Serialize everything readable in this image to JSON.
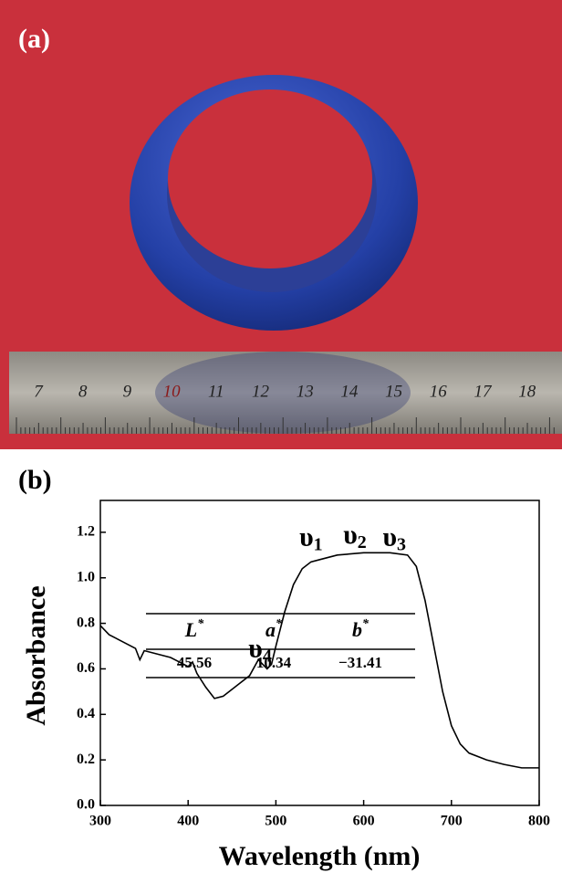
{
  "panel_a": {
    "label": "(a)",
    "ruler_labels": [
      "7",
      "8",
      "9",
      "10",
      "11",
      "12",
      "13",
      "14",
      "15",
      "16",
      "17",
      "18"
    ]
  },
  "chart_data": {
    "type": "line",
    "panel_label": "(b)",
    "x_label": "Wavelength (nm)",
    "y_label": "Absorbance",
    "x": [
      300,
      310,
      320,
      330,
      340,
      345,
      350,
      360,
      370,
      380,
      390,
      400,
      405,
      410,
      420,
      430,
      440,
      450,
      460,
      470,
      480,
      485,
      490,
      495,
      500,
      510,
      520,
      530,
      540,
      550,
      560,
      570,
      600,
      630,
      650,
      660,
      670,
      680,
      690,
      700,
      710,
      720,
      740,
      760,
      780,
      800
    ],
    "series": [
      {
        "color": "#000000",
        "values": [
          0.79,
          0.75,
          0.73,
          0.71,
          0.69,
          0.64,
          0.68,
          0.67,
          0.66,
          0.65,
          0.63,
          0.61,
          0.63,
          0.58,
          0.52,
          0.47,
          0.48,
          0.51,
          0.54,
          0.57,
          0.64,
          0.62,
          0.6,
          0.62,
          0.7,
          0.85,
          0.97,
          1.04,
          1.07,
          1.08,
          1.09,
          1.1,
          1.11,
          1.11,
          1.1,
          1.05,
          0.9,
          0.7,
          0.5,
          0.35,
          0.27,
          0.23,
          0.2,
          0.18,
          0.165,
          0.165
        ]
      }
    ],
    "xlim": [
      300,
      800
    ],
    "ylim": [
      0,
      1.34
    ],
    "xticks": [
      300,
      400,
      500,
      600,
      700,
      800
    ],
    "yticks": [
      {
        "value": 0,
        "label": "0.0"
      },
      0.2,
      0.4,
      0.6,
      0.8,
      {
        "value": 1,
        "label": "1.0"
      },
      1.2
    ],
    "annotations": [
      {
        "text": "υ",
        "sub": "1",
        "x": 540,
        "y": 1.17
      },
      {
        "text": "υ",
        "sub": "2",
        "x": 590,
        "y": 1.18
      },
      {
        "text": "υ",
        "sub": "3",
        "x": 635,
        "y": 1.17
      },
      {
        "text": "υ",
        "sub": "4",
        "x": 482,
        "y": 0.68
      }
    ],
    "inset_table": {
      "columns": [
        {
          "symbol": "L",
          "sup": "*"
        },
        {
          "symbol": "a",
          "sup": "*"
        },
        {
          "symbol": "b",
          "sup": "*"
        }
      ],
      "rows": [
        [
          "45.56",
          "10.34",
          "−31.41"
        ]
      ]
    }
  }
}
